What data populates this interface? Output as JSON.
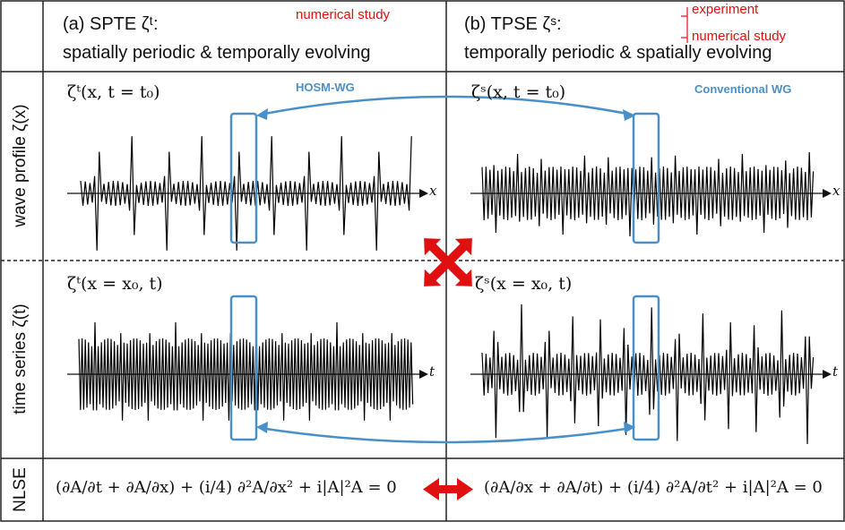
{
  "header": {
    "col_a_line1": "(a) SPTE ζᵗ:",
    "col_a_line2": "spatially periodic & temporally evolving",
    "col_a_note": "numerical study",
    "col_b_line1": "(b) TPSE ζˢ:",
    "col_b_line2": "temporally periodic & spatially evolving",
    "col_b_note1": "experiment",
    "col_b_note2": "numerical study"
  },
  "rows": {
    "wave_profile_label": "wave profile ζ(x)",
    "time_series_label": "time series ζ(t)",
    "nlse_label": "NLSE"
  },
  "panels": {
    "a_profile_title": "ζᵗ(x, t = t₀)",
    "b_profile_title": "ζˢ(x, t = t₀)",
    "a_series_title": "ζᵗ(x = x₀, t)",
    "b_series_title": "ζˢ(x = x₀, t)",
    "hosm_label": "HOSM-WG",
    "conv_label": "Conventional WG",
    "axis_x": "x",
    "axis_t": "t"
  },
  "equations": {
    "a": "(∂A/∂t + ∂A/∂x) + (i/4) ∂²A/∂x² + i|A|²A = 0",
    "b": "(∂A/∂x + ∂A/∂t) + (i/4) ∂²A/∂t² + i|A|²A = 0"
  },
  "colors": {
    "accent_blue": "#4a90c8",
    "accent_red": "#e01010",
    "grid": "#222222"
  }
}
